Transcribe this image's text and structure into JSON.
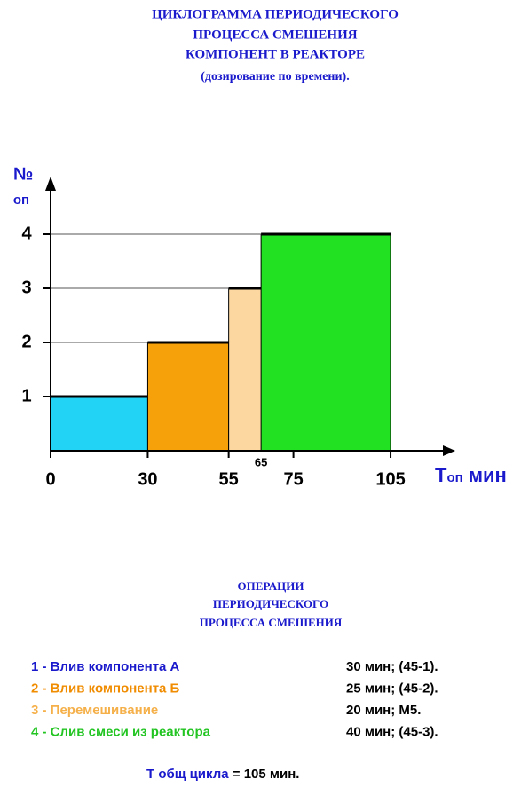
{
  "chart_data": {
    "type": "cyclogram",
    "title": [
      "ЦИКЛОГРАММА ПЕРИОДИЧЕСКОГО",
      "ПРОЦЕССА СМЕШЕНИЯ",
      "КОМПОНЕНТ В РЕАКТОРЕ",
      "(дозирование по времени)."
    ],
    "y_label": [
      "№",
      "оп"
    ],
    "x_label": {
      "main": "Т",
      "sub": "оп",
      "unit": "мин"
    },
    "xlim": [
      0,
      125
    ],
    "ylim": [
      0,
      5
    ],
    "xticks": [
      0,
      30,
      55,
      75,
      105
    ],
    "minor_xticks": [
      65
    ],
    "yticks": [
      1,
      2,
      3,
      4
    ],
    "bars": [
      {
        "start": 0,
        "end": 30,
        "value": 1,
        "color": "#22d3f5"
      },
      {
        "start": 30,
        "end": 55,
        "value": 2,
        "color": "#f7a10a"
      },
      {
        "start": 55,
        "end": 75,
        "value": 3,
        "color": "#fcd8a0"
      },
      {
        "start": 65,
        "end": 105,
        "value": 4,
        "color": "#22e022"
      }
    ]
  },
  "operations": {
    "heading": [
      "ОПЕРАЦИИ",
      "ПЕРИОДИЧЕСКОГО",
      "ПРОЦЕССА СМЕШЕНИЯ"
    ],
    "items": [
      {
        "label": "1 -  Влив компонента А",
        "info": "30 мин; (45-1).",
        "color": "#1a1acc"
      },
      {
        "label": "2 -  Влив компонента Б",
        "info": "25 мин; (45-2).",
        "color": "#f08c00"
      },
      {
        "label": "3 -  Перемешивание",
        "info": "20 мин;   М5.",
        "color": "#f5b04a"
      },
      {
        "label": "4 -  Слив смеси из реактора",
        "info": "40 мин; (45-3).",
        "color": "#22c422"
      }
    ],
    "total_label": "Т общ цикла",
    "total_value": " = 105 мин."
  }
}
